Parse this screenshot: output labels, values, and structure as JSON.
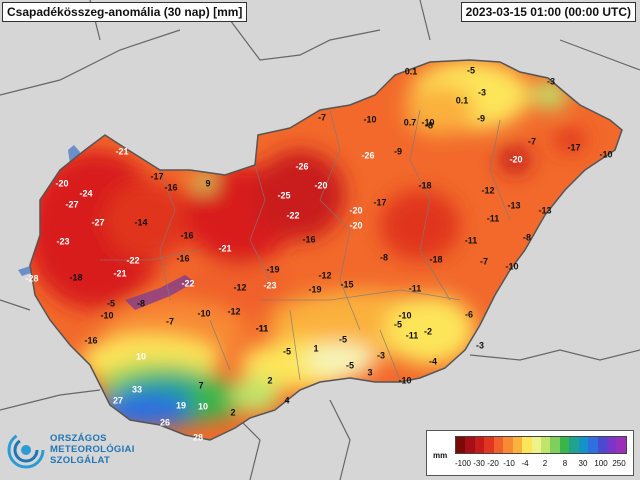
{
  "title": "Csapadékösszeg-anomália (30 nap) [mm]",
  "datetime": "2023-03-15 01:00 (00:00 UTC)",
  "logo": {
    "line1": "ORSZÁGOS",
    "line2": "METEOROLÓGIAI",
    "line3": "SZOLGÁLAT",
    "icon": "spiral-logo-icon"
  },
  "legend": {
    "unit": "mm",
    "colors": [
      "#7a0a0a",
      "#a50f15",
      "#c51b1b",
      "#e0351f",
      "#f0602a",
      "#f88a34",
      "#fbb13c",
      "#fde55a",
      "#eef28a",
      "#bfe56a",
      "#7fcf5c",
      "#39b54a",
      "#1fa38e",
      "#1592c9",
      "#2f6fe0",
      "#4b49d0",
      "#7a36c8",
      "#9a2fb8"
    ],
    "ticks": [
      "-100",
      "-30",
      "-20",
      "-10",
      "-4",
      "2",
      "8",
      "30",
      "100",
      "250"
    ]
  },
  "stations": [
    {
      "v": "-21"
    },
    {
      "v": "-20"
    },
    {
      "v": "-24"
    },
    {
      "v": "-17"
    },
    {
      "v": "-16"
    },
    {
      "v": "9"
    },
    {
      "v": "-27"
    },
    {
      "v": "-23"
    },
    {
      "v": "-27"
    },
    {
      "v": "-14"
    },
    {
      "v": "-18"
    },
    {
      "v": "-28"
    },
    {
      "v": "-21"
    },
    {
      "v": "-22"
    },
    {
      "v": "-16"
    },
    {
      "v": "-16"
    },
    {
      "v": "-21"
    },
    {
      "v": "-22"
    },
    {
      "v": "-26"
    },
    {
      "v": "-20"
    },
    {
      "v": "-25"
    },
    {
      "v": "-22"
    },
    {
      "v": "-16"
    },
    {
      "v": "-19"
    },
    {
      "v": "-23"
    },
    {
      "v": "-12"
    },
    {
      "v": "-19"
    },
    {
      "v": "-15"
    },
    {
      "v": "-12"
    },
    {
      "v": "-8"
    },
    {
      "v": "-5"
    },
    {
      "v": "-10"
    },
    {
      "v": "-16"
    },
    {
      "v": "-7"
    },
    {
      "v": "-10"
    },
    {
      "v": "-12"
    },
    {
      "v": "-11"
    },
    {
      "v": "-7"
    },
    {
      "v": "-10"
    },
    {
      "v": "-26"
    },
    {
      "v": "-20"
    },
    {
      "v": "-20"
    },
    {
      "v": "-17"
    },
    {
      "v": "-18"
    },
    {
      "v": "-9"
    },
    {
      "v": "-10"
    },
    {
      "v": "0.7"
    },
    {
      "v": "-8"
    },
    {
      "v": "0.1"
    },
    {
      "v": "-5"
    },
    {
      "v": "0.1"
    },
    {
      "v": "-3"
    },
    {
      "v": "-9"
    },
    {
      "v": "-3"
    },
    {
      "v": "-7"
    },
    {
      "v": "-20"
    },
    {
      "v": "-17"
    },
    {
      "v": "-10"
    },
    {
      "v": "-12"
    },
    {
      "v": "-13"
    },
    {
      "v": "-11"
    },
    {
      "v": "-13"
    },
    {
      "v": "-11"
    },
    {
      "v": "-8"
    },
    {
      "v": "-10"
    },
    {
      "v": "-7"
    },
    {
      "v": "-18"
    },
    {
      "v": "-8"
    },
    {
      "v": "-11"
    },
    {
      "v": "-6"
    },
    {
      "v": "-10"
    },
    {
      "v": "-11"
    },
    {
      "v": "-2"
    },
    {
      "v": "-3"
    },
    {
      "v": "-4"
    },
    {
      "v": "-5"
    },
    {
      "v": "1"
    },
    {
      "v": "-5"
    },
    {
      "v": "-5"
    },
    {
      "v": "-3"
    },
    {
      "v": "3"
    },
    {
      "v": "-10"
    },
    {
      "v": "-11"
    },
    {
      "v": "-5"
    },
    {
      "v": "10"
    },
    {
      "v": "7"
    },
    {
      "v": "33"
    },
    {
      "v": "27"
    },
    {
      "v": "19"
    },
    {
      "v": "10"
    },
    {
      "v": "2"
    },
    {
      "v": "4"
    },
    {
      "v": "2"
    },
    {
      "v": "26"
    },
    {
      "v": "28"
    }
  ]
}
